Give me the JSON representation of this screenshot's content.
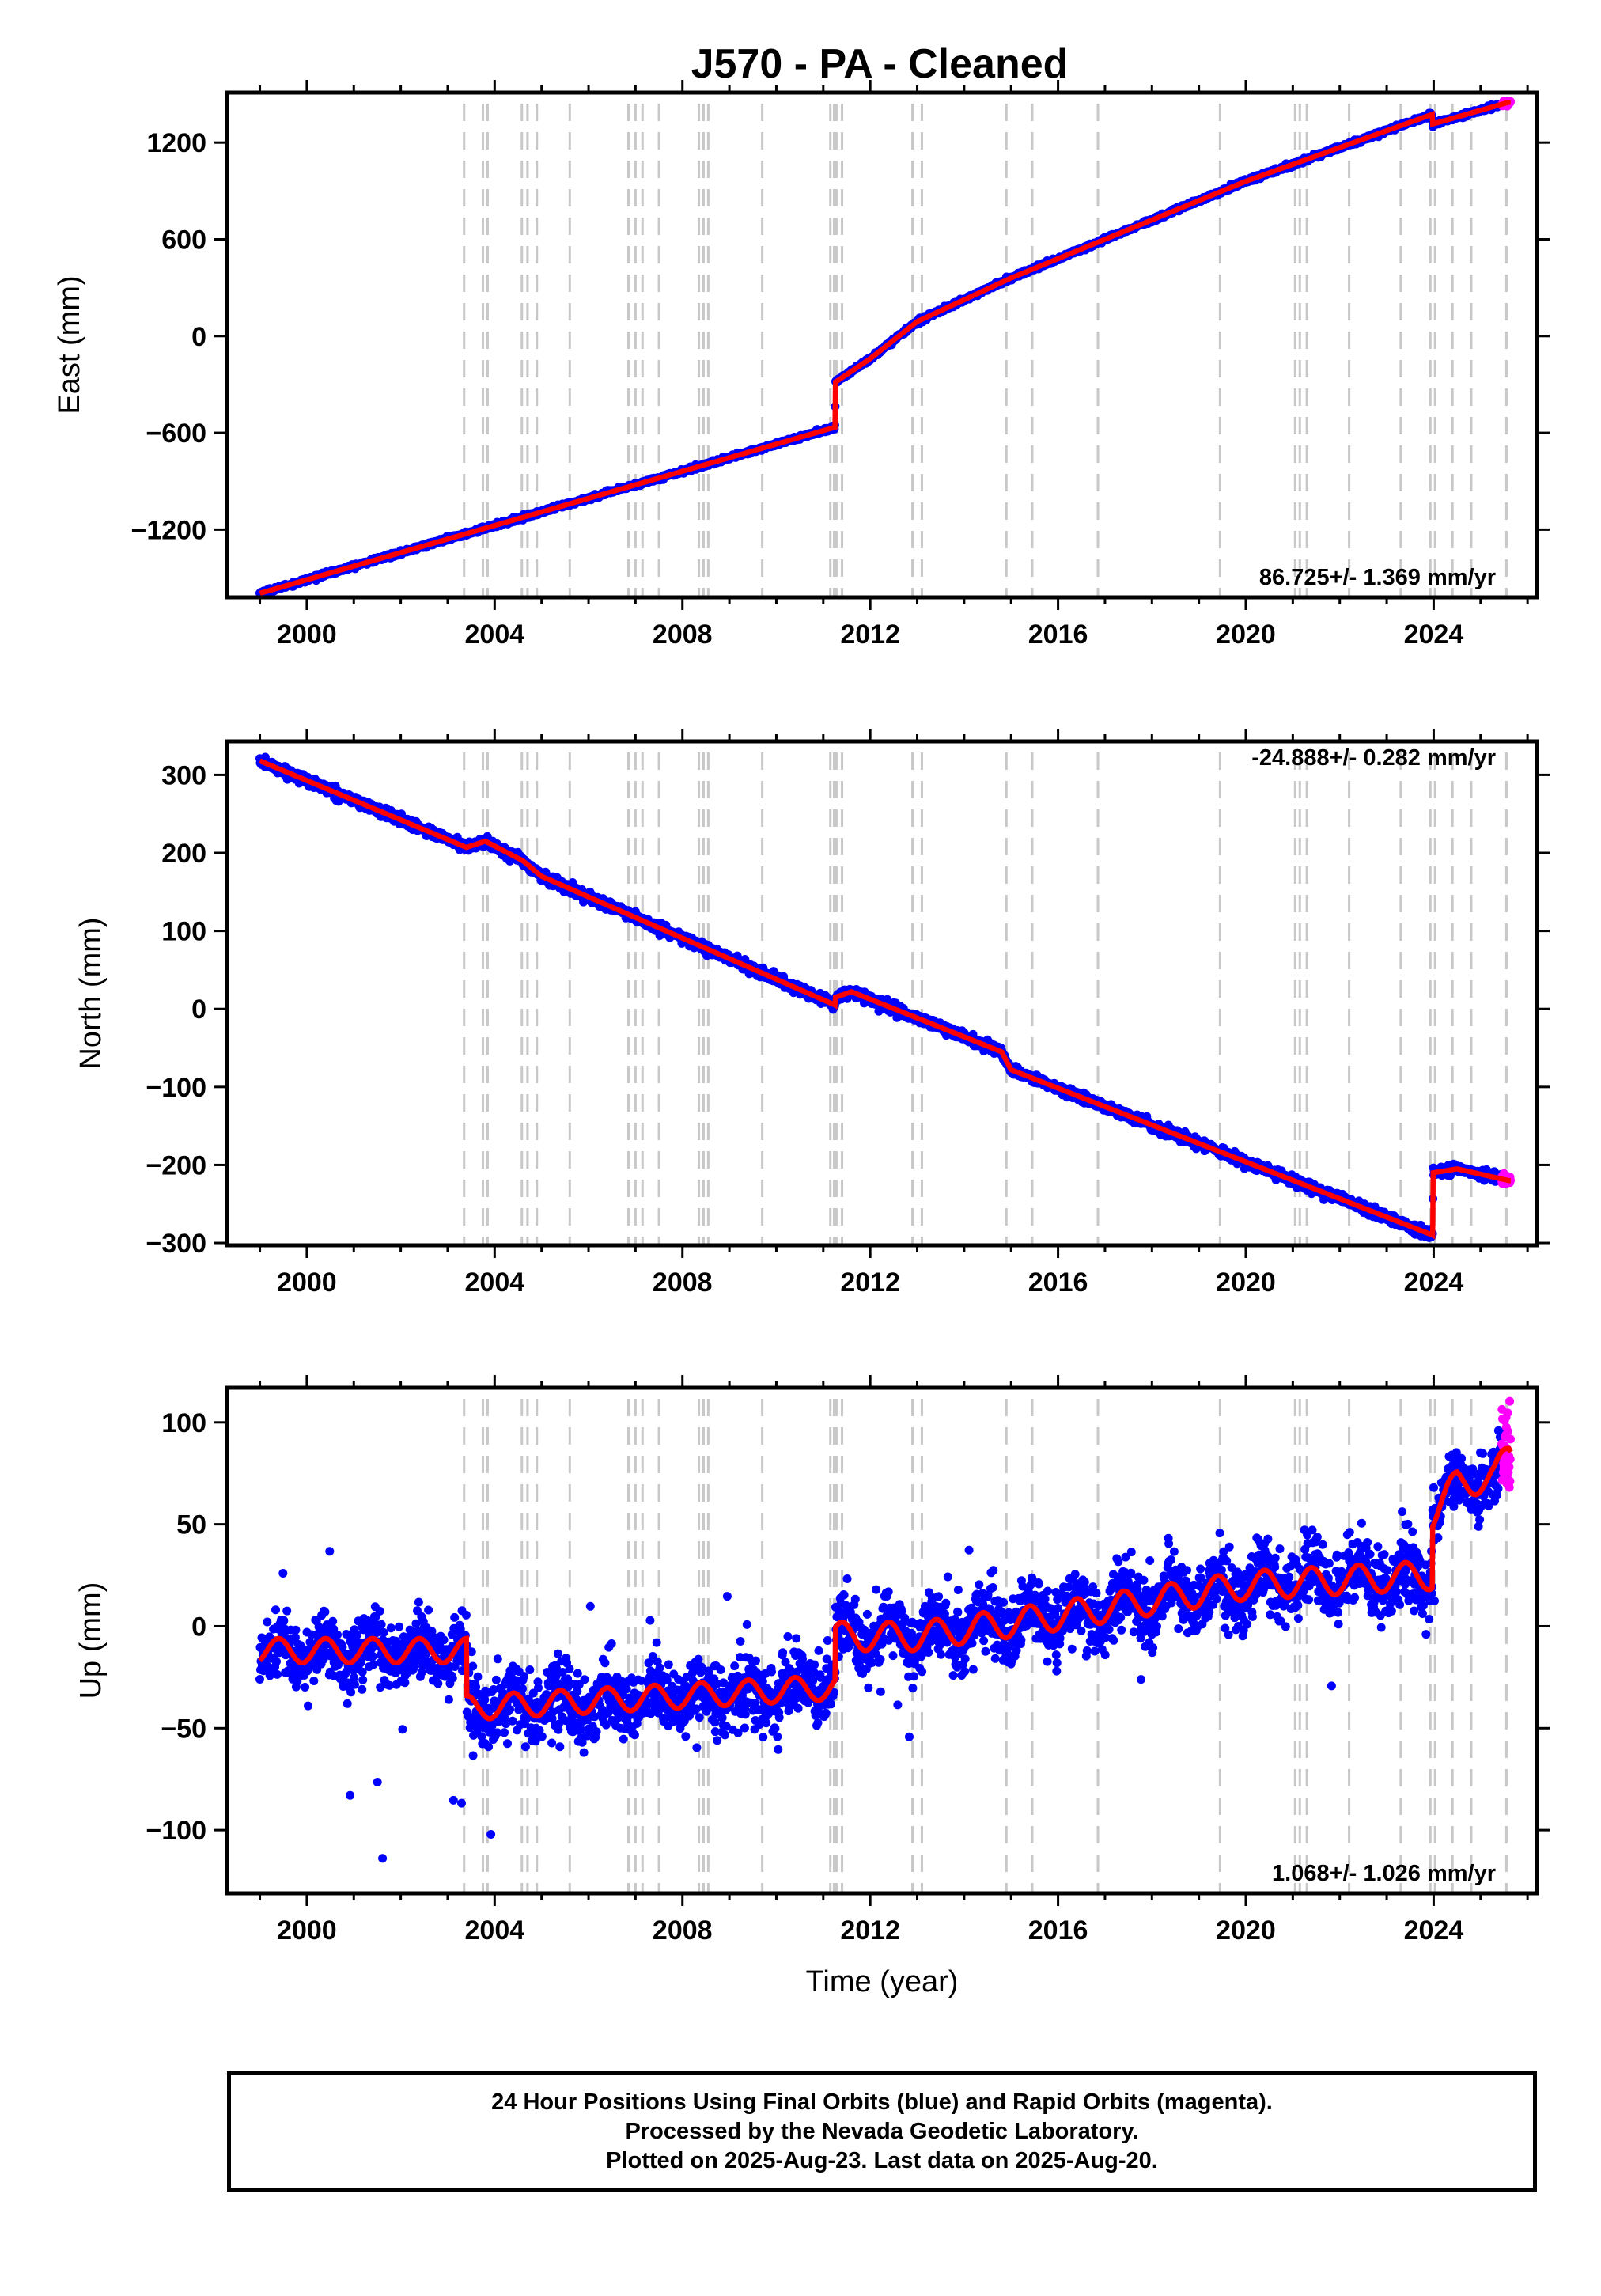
{
  "title": "J570  - PA - Cleaned",
  "chart_data": [
    {
      "type": "scatter",
      "component": "east",
      "ylabel": "East (mm)",
      "xlabel": "",
      "xlim": [
        1998.3,
        2026.2
      ],
      "ylim": [
        -1620,
        1510
      ],
      "yticks": [
        -1200,
        -600,
        0,
        600,
        1200
      ],
      "ytick_labels": [
        "−1200",
        "−600",
        "0",
        "600",
        "1200"
      ],
      "xticks": [
        2000,
        2004,
        2008,
        2012,
        2016,
        2020,
        2024
      ],
      "rate": "86.725+/- 1.369 mm/yr",
      "rate_position": "bottom-right",
      "noise": 6,
      "outliers": 0,
      "trend": [
        [
          1999.0,
          -1595
        ],
        [
          2011.25,
          -565
        ],
        [
          2011.26,
          -285
        ],
        [
          2012.0,
          -140
        ],
        [
          2013.0,
          90
        ],
        [
          2015.0,
          360
        ],
        [
          2020.0,
          960
        ],
        [
          2023.97,
          1375
        ],
        [
          2023.98,
          1315
        ],
        [
          2025.6,
          1450
        ]
      ],
      "seasonal": [],
      "series": [
        {
          "name": "Final Orbits",
          "color": "#0000ff",
          "x_range": [
            1999.0,
            2025.45
          ]
        },
        {
          "name": "Rapid Orbits",
          "color": "#ff00ff",
          "x_range": [
            2025.45,
            2025.64
          ]
        },
        {
          "name": "Model",
          "color": "#ff0000"
        }
      ]
    },
    {
      "type": "scatter",
      "component": "north",
      "ylabel": "North (mm)",
      "xlabel": "",
      "xlim": [
        1998.3,
        2026.2
      ],
      "ylim": [
        -303,
        343
      ],
      "yticks": [
        -300,
        -200,
        -100,
        0,
        100,
        200,
        300
      ],
      "ytick_labels": [
        "−300",
        "−200",
        "−100",
        "0",
        "100",
        "200",
        "300"
      ],
      "xticks": [
        2000,
        2004,
        2008,
        2012,
        2016,
        2020,
        2024
      ],
      "rate": "-24.888+/- 0.282 mm/yr",
      "rate_position": "top-right",
      "noise": 3,
      "outliers": 0,
      "trend": [
        [
          1999.0,
          318
        ],
        [
          2003.4,
          207
        ],
        [
          2003.8,
          215
        ],
        [
          2004.6,
          190
        ],
        [
          2005.0,
          170
        ],
        [
          2011.25,
          5
        ],
        [
          2011.26,
          15
        ],
        [
          2011.6,
          22
        ],
        [
          2014.8,
          -55
        ],
        [
          2015.0,
          -78
        ],
        [
          2023.98,
          -290
        ],
        [
          2023.99,
          -210
        ],
        [
          2024.5,
          -205
        ],
        [
          2025.6,
          -220
        ]
      ],
      "seasonal": [],
      "series": [
        {
          "name": "Final Orbits",
          "color": "#0000ff",
          "x_range": [
            1999.0,
            2025.45
          ]
        },
        {
          "name": "Rapid Orbits",
          "color": "#ff00ff",
          "x_range": [
            2025.45,
            2025.64
          ]
        },
        {
          "name": "Model",
          "color": "#ff0000"
        }
      ]
    },
    {
      "type": "scatter",
      "component": "up",
      "ylabel": "Up (mm)",
      "xlabel": "Time (year)",
      "xlim": [
        1998.3,
        2026.2
      ],
      "ylim": [
        -131,
        117
      ],
      "yticks": [
        -100,
        -50,
        0,
        50,
        100
      ],
      "ytick_labels": [
        "−100",
        "−50",
        "0",
        "50",
        "100"
      ],
      "xticks": [
        2000,
        2004,
        2008,
        2012,
        2016,
        2020,
        2024
      ],
      "rate": "1.068+/- 1.026 mm/yr",
      "rate_position": "bottom-right",
      "noise": 8,
      "outliers": 70,
      "trend": [
        [
          1999.0,
          -12
        ],
        [
          2003.4,
          -12
        ],
        [
          2003.41,
          -40
        ],
        [
          2011.25,
          -30
        ],
        [
          2011.26,
          -5
        ],
        [
          2013.0,
          -5
        ],
        [
          2016.0,
          5
        ],
        [
          2020.0,
          20
        ],
        [
          2023.97,
          25
        ],
        [
          2023.98,
          55
        ],
        [
          2024.5,
          70
        ],
        [
          2025.3,
          73
        ],
        [
          2025.6,
          85
        ]
      ],
      "seasonal": [
        [
          2003.4,
          6
        ],
        [
          2011.25,
          6
        ],
        [
          2023.97,
          7
        ]
      ],
      "series": [
        {
          "name": "Final Orbits",
          "color": "#0000ff",
          "x_range": [
            1999.0,
            2025.45
          ]
        },
        {
          "name": "Rapid Orbits",
          "color": "#ff00ff",
          "x_range": [
            2025.45,
            2025.64
          ]
        },
        {
          "name": "Model",
          "color": "#ff0000"
        }
      ]
    }
  ],
  "event_lines": [
    2003.35,
    2003.75,
    2003.85,
    2004.58,
    2004.7,
    2004.9,
    2005.6,
    2006.85,
    2007.0,
    2007.15,
    2007.5,
    2008.35,
    2008.45,
    2008.55,
    2009.7,
    2011.15,
    2011.23,
    2011.28,
    2011.4,
    2012.9,
    2013.1,
    2014.9,
    2015.45,
    2016.85,
    2019.45,
    2021.05,
    2021.15,
    2021.3,
    2022.2,
    2023.3,
    2023.93,
    2024.03,
    2024.4,
    2024.8,
    2025.55
  ],
  "colors": {
    "final_orbits": "#0000ff",
    "rapid_orbits": "#ff00ff",
    "model": "#ff0000",
    "event_line": "#c8c8c8",
    "frame": "#000000"
  },
  "footer": {
    "line1": "24 Hour Positions Using Final Orbits (blue) and Rapid Orbits (magenta).",
    "line2": "Processed by the Nevada Geodetic Laboratory.",
    "line3": "Plotted on 2025-Aug-23. Last data on 2025-Aug-20."
  }
}
